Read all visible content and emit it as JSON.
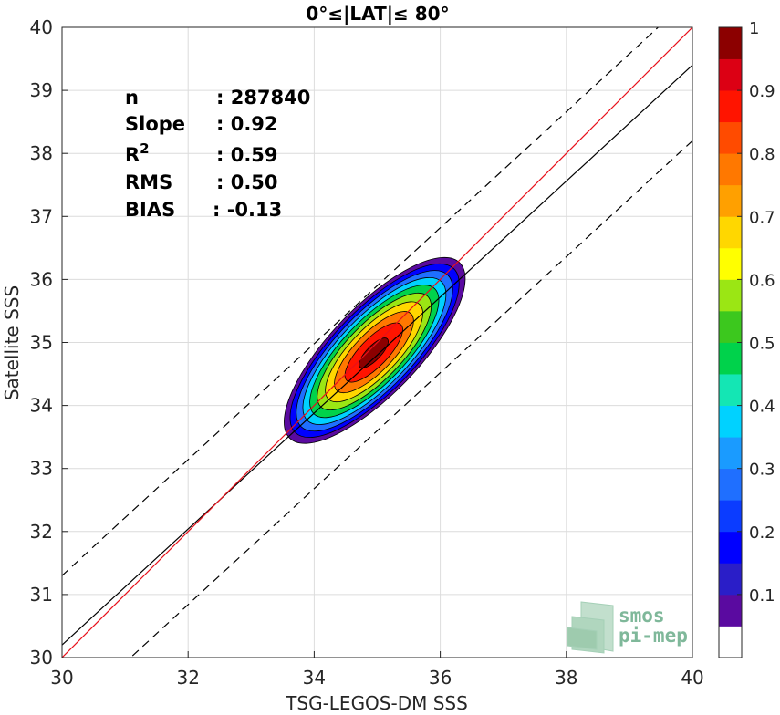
{
  "chart_data": {
    "type": "contour",
    "title": "0°≤|LAT|≤ 80°",
    "xlabel": "TSG-LEGOS-DM SSS",
    "ylabel": "Satellite SSS",
    "xlim": [
      30,
      40
    ],
    "ylim": [
      30,
      40
    ],
    "xticks": [
      "30",
      "32",
      "34",
      "36",
      "38",
      "40"
    ],
    "yticks": [
      "30",
      "31",
      "32",
      "33",
      "34",
      "35",
      "36",
      "37",
      "38",
      "39",
      "40"
    ],
    "grid": true,
    "stats": [
      {
        "label": "n",
        "value": ": 287840"
      },
      {
        "label": "Slope",
        "value": ": 0.92"
      },
      {
        "label": "R",
        "sup": "2",
        "value": ": 0.59"
      },
      {
        "label": "RMS",
        "value": ": 0.50"
      },
      {
        "label": "BIAS",
        "value": ": -0.13"
      }
    ],
    "lines": {
      "identity": {
        "slope": 1,
        "intercept": 0,
        "color": "#e8111b"
      },
      "regression": {
        "slope": 0.92,
        "intercept": 2.6,
        "color": "#000000"
      },
      "upper_bound": {
        "slope": 0.92,
        "intercept": 3.7,
        "style": "dashed"
      },
      "lower_bound": {
        "slope": 0.92,
        "intercept": 1.4,
        "style": "dashed"
      }
    },
    "density_center": {
      "x": 34.95,
      "y": 34.85
    },
    "contour_levels": [
      0.05,
      0.15,
      0.25,
      0.35,
      0.45,
      0.55,
      0.65,
      0.75,
      0.85,
      0.95
    ],
    "colorbar": {
      "ticks": [
        "0.1",
        "0.2",
        "0.3",
        "0.4",
        "0.5",
        "0.6",
        "0.7",
        "0.8",
        "0.9",
        "1"
      ],
      "colors": [
        "#ffffff",
        "#5a0aa0",
        "#2a1ec8",
        "#0000ff",
        "#0b3cff",
        "#1f6fff",
        "#1a9bff",
        "#00d2ff",
        "#14e6b4",
        "#00d24b",
        "#3cc81e",
        "#9be614",
        "#ffff00",
        "#ffd700",
        "#ffa000",
        "#ff7800",
        "#ff4b00",
        "#ff1400",
        "#dc0014",
        "#8c0000"
      ]
    },
    "logo": {
      "line1": "smos",
      "line2": "pi-mep"
    }
  }
}
